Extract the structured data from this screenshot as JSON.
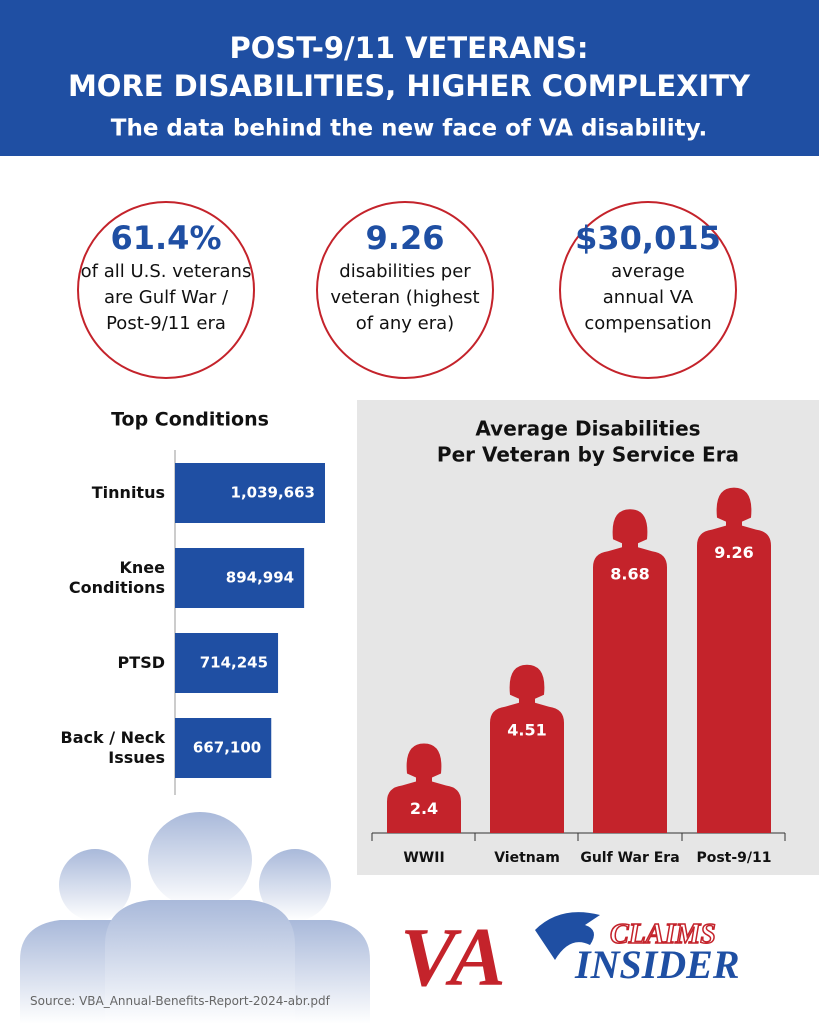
{
  "header": {
    "title_lines": [
      "POST-9/11 VETERANS:",
      "MORE DISABILITIES, HIGHER COMPLEXITY"
    ],
    "subtitle": "The data behind the new face of VA disability."
  },
  "stats": [
    {
      "value": "61.4%",
      "lines": [
        "of all U.S. veterans",
        "are Gulf War /",
        "Post-9/11 era"
      ]
    },
    {
      "value": "9.26",
      "lines": [
        "disabilities per",
        "veteran (highest",
        "of any era)"
      ]
    },
    {
      "value": "$30,015",
      "lines": [
        "average",
        "annual VA",
        "compensation"
      ]
    }
  ],
  "chart_data": [
    {
      "type": "hbar",
      "title": "Top Conditions",
      "categories": [
        "Tinnitus",
        "Knee Conditions",
        "PTSD",
        "Back / Neck Issues"
      ],
      "values": [
        1039663,
        894994,
        714245,
        667100
      ],
      "value_labels": [
        "1,039,663",
        "894,994",
        "714,245",
        "667,100"
      ],
      "color": "#1f4fa3"
    },
    {
      "type": "soldier",
      "title": [
        "Average Disabilities",
        "Per Veteran by Service Era"
      ],
      "categories": [
        "WWII",
        "Vietnam",
        "Gulf War Era",
        "Post-9/11"
      ],
      "values": [
        2.4,
        4.51,
        8.68,
        9.26
      ],
      "color": "#c4232b"
    }
  ],
  "logo": {
    "left": "VA",
    "top": "CLAIMS",
    "bottom": "INSIDER"
  },
  "source": "Source: VBA_Annual-Benefits-Report-2024-abr.pdf"
}
